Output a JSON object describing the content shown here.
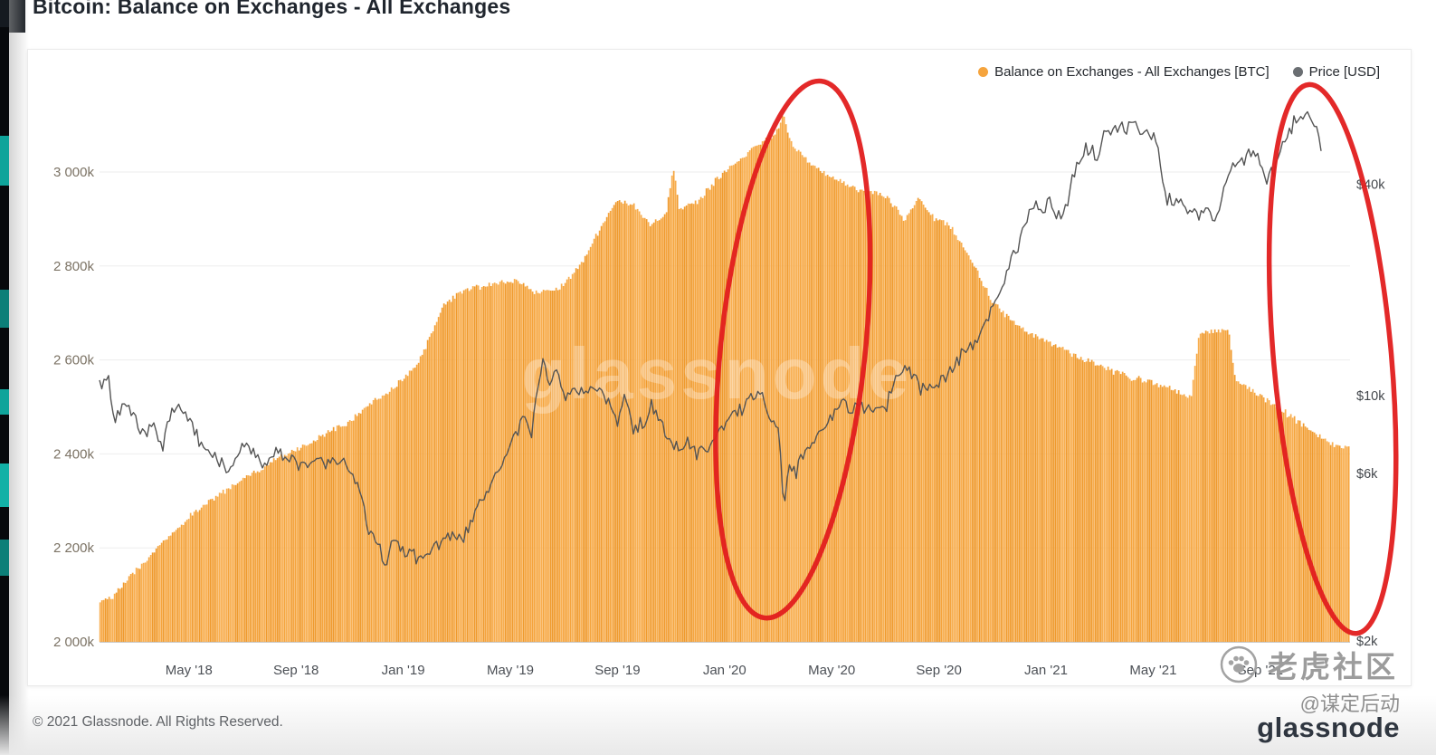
{
  "page": {
    "title": "Bitcoin: Balance on Exchanges - All Exchanges",
    "copyright": "© 2021 Glassnode. All Rights Reserved.",
    "brand_wordmark": "glassnode",
    "overlay": {
      "community_name": "老虎社区",
      "community_handle": "@谋定后动"
    }
  },
  "legend": {
    "balance_label": "Balance on Exchanges - All Exchanges [BTC]",
    "price_label": "Price [USD]",
    "balance_color": "#f5a43d",
    "price_color": "#6a6e72"
  },
  "chart_data": {
    "type": "area+line",
    "title": "Bitcoin: Balance on Exchanges - All Exchanges",
    "watermark": "glassnode",
    "x_unit": "months since Feb 2018",
    "x_tick_labels": [
      "May '18",
      "Sep '18",
      "Jan '19",
      "May '19",
      "Sep '19",
      "Jan '20",
      "May '20",
      "Sep '20",
      "Jan '21",
      "May '21",
      "Sep '21"
    ],
    "left_axis": {
      "tick_labels": [
        "2 000k",
        "2 200k",
        "2 400k",
        "2 600k",
        "2 800k",
        "3 000k"
      ],
      "tick_values": [
        2000,
        2200,
        2400,
        2600,
        2800,
        3000
      ],
      "unit": "k BTC",
      "scale": "linear"
    },
    "right_axis": {
      "tick_labels": [
        "$2k",
        "$6k",
        "$10k",
        "$40k"
      ],
      "tick_values": [
        2,
        6,
        10,
        40
      ],
      "unit": "USD thousands",
      "scale": "log"
    },
    "grid": "horizontal",
    "legend_position": "top-right",
    "series": [
      {
        "name": "Balance on Exchanges - All Exchanges [BTC]",
        "type": "area",
        "color": "#f5a43d",
        "unit": "k BTC",
        "points": [
          [
            0,
            2090
          ],
          [
            1,
            2152
          ],
          [
            2,
            2215
          ],
          [
            3,
            2265
          ],
          [
            4,
            2310
          ],
          [
            5,
            2346
          ],
          [
            6,
            2380
          ],
          [
            7,
            2410
          ],
          [
            8,
            2440
          ],
          [
            9,
            2470
          ],
          [
            10,
            2515
          ],
          [
            11,
            2558
          ],
          [
            11.6,
            2600
          ],
          [
            12.5,
            2718
          ],
          [
            13.2,
            2748
          ],
          [
            14.2,
            2762
          ],
          [
            15.2,
            2770
          ],
          [
            16,
            2742
          ],
          [
            16.8,
            2752
          ],
          [
            17.6,
            2800
          ],
          [
            18.4,
            2890
          ],
          [
            19,
            2940
          ],
          [
            19.6,
            2930
          ],
          [
            20.2,
            2888
          ],
          [
            20.8,
            2912
          ],
          [
            21.05,
            3012
          ],
          [
            21.3,
            2922
          ],
          [
            22,
            2938
          ],
          [
            22.8,
            2992
          ],
          [
            23.6,
            3028
          ],
          [
            24.3,
            3062
          ],
          [
            24.9,
            3082
          ],
          [
            25.15,
            3122
          ],
          [
            25.5,
            3058
          ],
          [
            26.2,
            3018
          ],
          [
            27,
            2988
          ],
          [
            28,
            2962
          ],
          [
            29,
            2950
          ],
          [
            29.7,
            2900
          ],
          [
            30.2,
            2946
          ],
          [
            30.8,
            2902
          ],
          [
            31.4,
            2884
          ],
          [
            32.2,
            2812
          ],
          [
            33,
            2722
          ],
          [
            34,
            2668
          ],
          [
            35,
            2640
          ],
          [
            36,
            2612
          ],
          [
            37,
            2588
          ],
          [
            38,
            2566
          ],
          [
            39,
            2550
          ],
          [
            40,
            2532
          ],
          [
            40.4,
            2520
          ],
          [
            40.7,
            2658
          ],
          [
            41.8,
            2662
          ],
          [
            42.05,
            2556
          ],
          [
            43,
            2522
          ],
          [
            44,
            2484
          ],
          [
            45,
            2446
          ],
          [
            45.8,
            2416
          ]
        ]
      },
      {
        "name": "Price [USD]",
        "type": "line",
        "color": "#545454",
        "unit": "USD thousands",
        "points": [
          [
            0,
            10.8
          ],
          [
            0.25,
            8.1
          ],
          [
            0.5,
            9.7
          ],
          [
            0.8,
            9.0
          ],
          [
            1,
            8.6
          ],
          [
            1.3,
            7.6
          ],
          [
            1.6,
            8.4
          ],
          [
            2,
            7.0
          ],
          [
            2.3,
            9.0
          ],
          [
            2.6,
            9.5
          ],
          [
            3,
            8.6
          ],
          [
            3.4,
            7.5
          ],
          [
            3.8,
            6.7
          ],
          [
            4.2,
            6.4
          ],
          [
            4.6,
            6.2
          ],
          [
            5,
            7.4
          ],
          [
            5.4,
            7.1
          ],
          [
            5.8,
            6.3
          ],
          [
            6.2,
            7.1
          ],
          [
            6.6,
            6.7
          ],
          [
            7,
            6.5
          ],
          [
            7.5,
            6.4
          ],
          [
            8,
            6.5
          ],
          [
            8.5,
            6.4
          ],
          [
            9,
            6.3
          ],
          [
            9.3,
            5.6
          ],
          [
            9.7,
            4.2
          ],
          [
            10,
            3.9
          ],
          [
            10.3,
            3.3
          ],
          [
            10.6,
            3.9
          ],
          [
            11,
            3.6
          ],
          [
            11.5,
            3.5
          ],
          [
            12,
            3.6
          ],
          [
            12.5,
            3.9
          ],
          [
            13,
            3.9
          ],
          [
            13.4,
            4.1
          ],
          [
            14,
            5.2
          ],
          [
            14.4,
            5.7
          ],
          [
            15,
            7.3
          ],
          [
            15.5,
            8.6
          ],
          [
            15.8,
            8.0
          ],
          [
            16.2,
            12.3
          ],
          [
            16.5,
            10.7
          ],
          [
            16.8,
            11.8
          ],
          [
            17.1,
            9.7
          ],
          [
            17.4,
            10.7
          ],
          [
            17.8,
            10.0
          ],
          [
            18.2,
            10.4
          ],
          [
            18.6,
            9.5
          ],
          [
            19,
            8.3
          ],
          [
            19.3,
            10.1
          ],
          [
            19.6,
            8.1
          ],
          [
            20,
            8.3
          ],
          [
            20.3,
            9.3
          ],
          [
            20.6,
            8.5
          ],
          [
            21,
            7.2
          ],
          [
            21.5,
            7.3
          ],
          [
            22,
            6.8
          ],
          [
            22.5,
            7.3
          ],
          [
            23,
            8.2
          ],
          [
            23.3,
            8.9
          ],
          [
            23.7,
            9.4
          ],
          [
            24,
            9.7
          ],
          [
            24.3,
            10.3
          ],
          [
            24.7,
            8.8
          ],
          [
            25,
            7.9
          ],
          [
            25.2,
            4.8
          ],
          [
            25.4,
            6.3
          ],
          [
            25.7,
            6.1
          ],
          [
            26,
            6.9
          ],
          [
            26.5,
            7.7
          ],
          [
            27,
            8.9
          ],
          [
            27.3,
            9.7
          ],
          [
            27.7,
            9.0
          ],
          [
            28,
            9.4
          ],
          [
            28.5,
            9.1
          ],
          [
            29,
            9.2
          ],
          [
            29.4,
            11.2
          ],
          [
            29.7,
            11.9
          ],
          [
            30,
            11.6
          ],
          [
            30.3,
            10.3
          ],
          [
            30.7,
            10.9
          ],
          [
            31,
            10.7
          ],
          [
            31.4,
            11.6
          ],
          [
            31.8,
            13.1
          ],
          [
            32.2,
            13.9
          ],
          [
            32.6,
            15.6
          ],
          [
            33,
            18.2
          ],
          [
            33.3,
            19.3
          ],
          [
            33.6,
            23.4
          ],
          [
            34,
            27.4
          ],
          [
            34.3,
            32.3
          ],
          [
            34.6,
            35.4
          ],
          [
            34.9,
            32.6
          ],
          [
            35.1,
            38.2
          ],
          [
            35.4,
            31.4
          ],
          [
            35.8,
            34.8
          ],
          [
            36.1,
            45.6
          ],
          [
            36.5,
            50.5
          ],
          [
            36.9,
            48.3
          ],
          [
            37.2,
            54.2
          ],
          [
            37.6,
            58.6
          ],
          [
            38,
            57.6
          ],
          [
            38.3,
            61.4
          ],
          [
            38.6,
            53.8
          ],
          [
            38.9,
            57.4
          ],
          [
            39.2,
            48.9
          ],
          [
            39.45,
            36.8
          ],
          [
            39.7,
            35.3
          ],
          [
            40,
            36.6
          ],
          [
            40.3,
            33.2
          ],
          [
            40.7,
            31.8
          ],
          [
            41,
            34.6
          ],
          [
            41.3,
            31.4
          ],
          [
            41.7,
            39.8
          ],
          [
            42,
            44.3
          ],
          [
            42.4,
            47.6
          ],
          [
            42.7,
            48.7
          ],
          [
            43,
            46.9
          ],
          [
            43.3,
            40.8
          ],
          [
            43.7,
            47.8
          ],
          [
            44,
            54.2
          ],
          [
            44.3,
            61.2
          ],
          [
            44.7,
            63.8
          ],
          [
            45.05,
            59.0
          ],
          [
            45.35,
            48.5
          ]
        ]
      }
    ],
    "annotations": [
      {
        "shape": "ellipse",
        "color": "#e11d1d",
        "center_month": 25.55,
        "month_radius": 2.7,
        "cy_frac": 0.48,
        "ry_frac": 0.48,
        "rotation_deg": 6
      },
      {
        "shape": "ellipse",
        "color": "#e11d1d",
        "center_month": 45.7,
        "month_radius": 2.2,
        "cy_frac": 0.497,
        "ry_frac": 0.49,
        "rotation_deg": -5
      }
    ]
  }
}
